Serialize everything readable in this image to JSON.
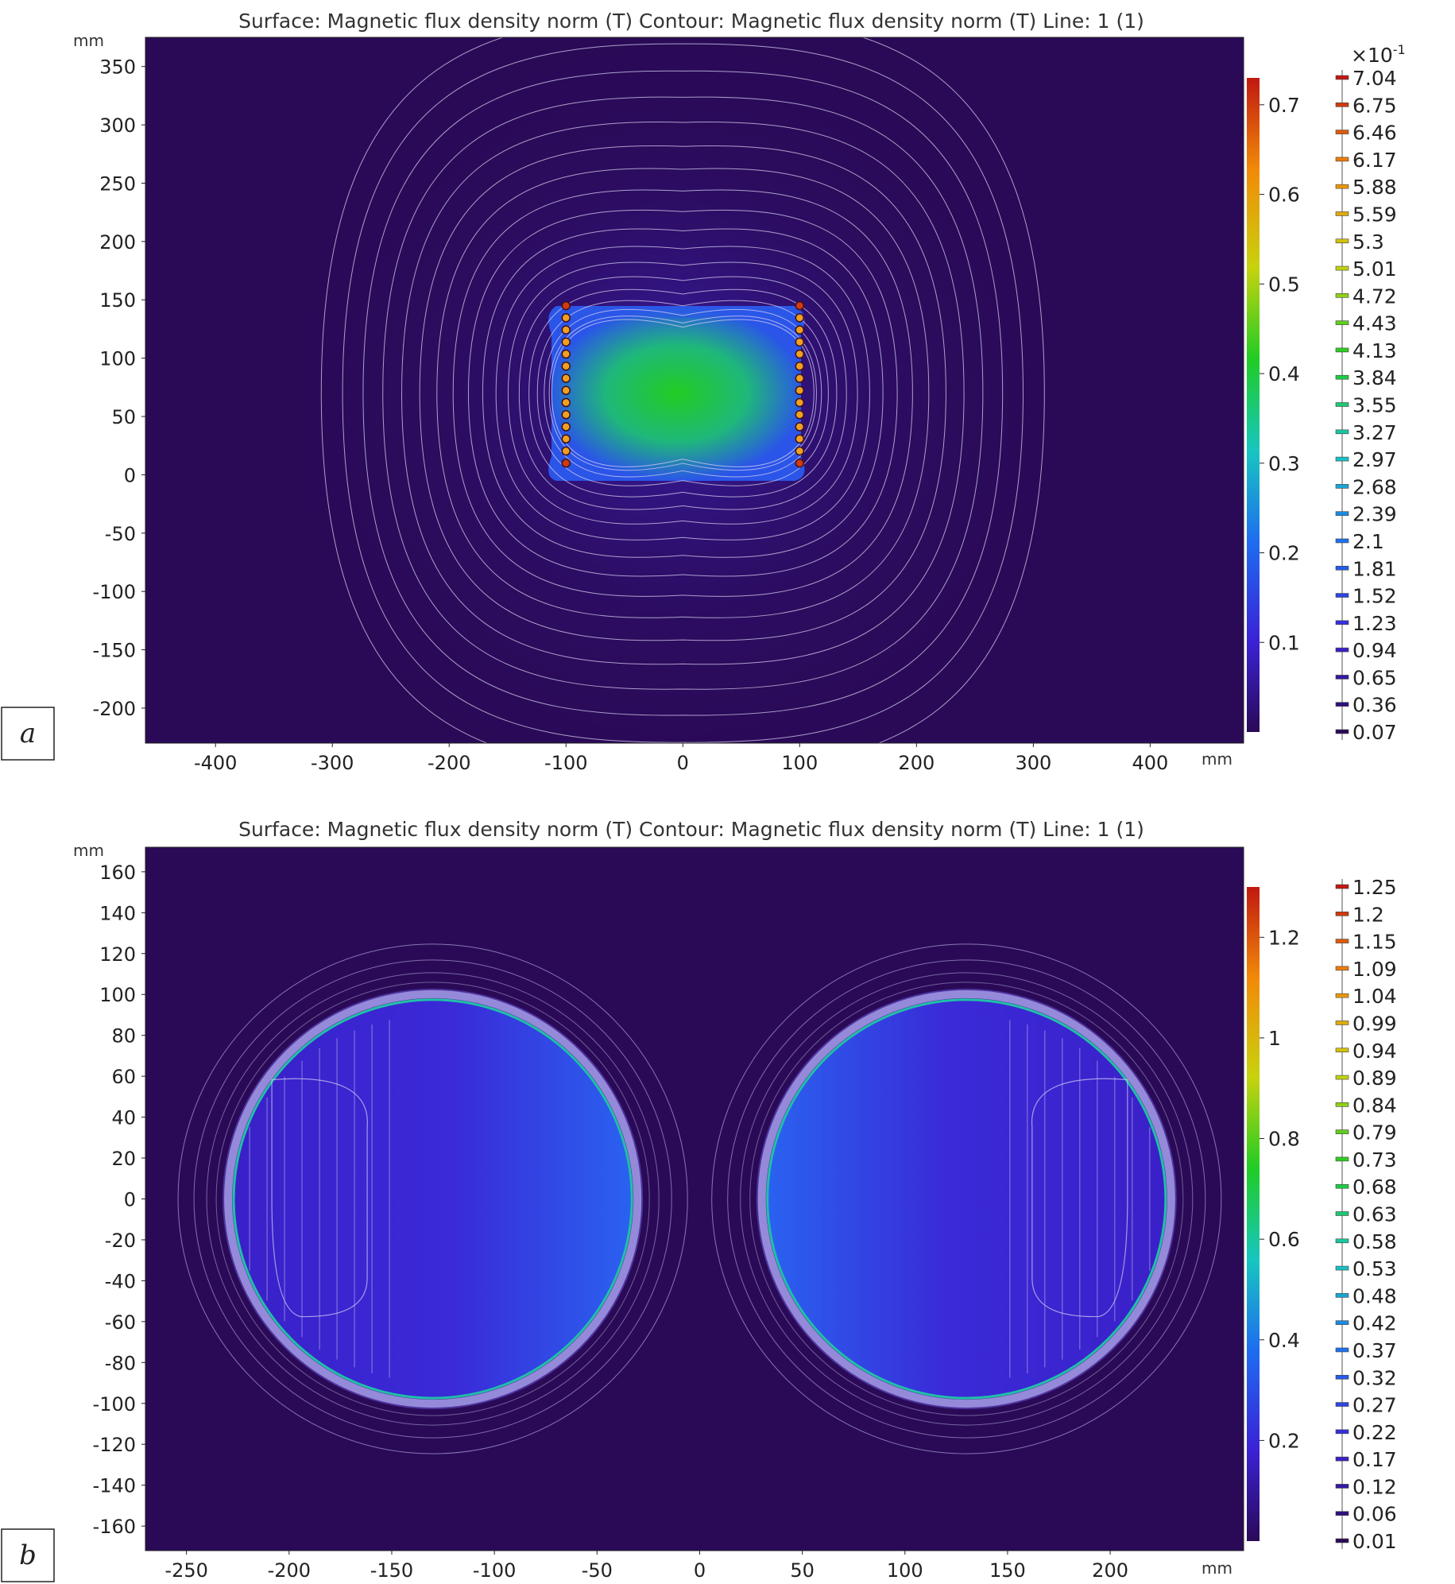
{
  "panels": [
    {
      "label": "a",
      "title": "Surface: Magnetic flux density norm (T)  Contour: Magnetic flux density norm (T)  Line: 1 (1)",
      "x_unit": "mm",
      "y_unit": "mm",
      "surface_colorbar_ticks": [
        "0.7",
        "0.6",
        "0.5",
        "0.4",
        "0.3",
        "0.2",
        "0.1"
      ],
      "contour_scale_multiplier": "×10",
      "contour_scale_exponent": "-1",
      "contour_levels": [
        "7.04",
        "6.75",
        "6.46",
        "6.17",
        "5.88",
        "5.59",
        "5.3",
        "5.01",
        "4.72",
        "4.43",
        "4.13",
        "3.84",
        "3.55",
        "3.27",
        "2.97",
        "2.68",
        "2.39",
        "2.1",
        "1.81",
        "1.52",
        "1.23",
        "0.94",
        "0.65",
        "0.36",
        "0.07"
      ]
    },
    {
      "label": "b",
      "title": "Surface: Magnetic flux density norm (T)  Contour: Magnetic flux density norm (T)  Line: 1 (1)",
      "x_unit": "mm",
      "y_unit": "mm",
      "surface_colorbar_ticks": [
        "1.2",
        "1",
        "0.8",
        "0.6",
        "0.4",
        "0.2"
      ],
      "contour_scale_multiplier": "",
      "contour_scale_exponent": "",
      "contour_levels": [
        "1.25",
        "1.2",
        "1.15",
        "1.09",
        "1.04",
        "0.99",
        "0.94",
        "0.89",
        "0.84",
        "0.79",
        "0.73",
        "0.68",
        "0.63",
        "0.58",
        "0.53",
        "0.48",
        "0.42",
        "0.37",
        "0.32",
        "0.27",
        "0.22",
        "0.17",
        "0.12",
        "0.06",
        "0.01"
      ]
    }
  ],
  "chart_data": [
    {
      "type": "heatmap",
      "title": "Surface: Magnetic flux density norm (T)  Contour: Magnetic flux density norm (T)  Line: 1 (1)",
      "xlabel": "mm",
      "ylabel": "mm",
      "xlim": [
        -460,
        480
      ],
      "ylim": [
        -230,
        375
      ],
      "x_ticks": [
        -400,
        -300,
        -200,
        -100,
        0,
        100,
        200,
        300,
        400
      ],
      "y_ticks": [
        350,
        300,
        250,
        200,
        150,
        100,
        50,
        0,
        -50,
        -100,
        -150,
        -200
      ],
      "colorbar_range": [
        0.0,
        0.73
      ],
      "colorbar_ticks": [
        0.7,
        0.6,
        0.5,
        0.4,
        0.3,
        0.2,
        0.1
      ],
      "colormap": "rainbow",
      "colormap_stops": [
        "#2a0a57",
        "#3b22d6",
        "#1e6cf0",
        "#17c6c0",
        "#20cc24",
        "#c8d20e",
        "#f28a08",
        "#c01810"
      ],
      "contour_levels_x0_1": [
        7.04,
        6.75,
        6.46,
        6.17,
        5.88,
        5.59,
        5.3,
        5.01,
        4.72,
        4.43,
        4.13,
        3.84,
        3.55,
        3.27,
        2.97,
        2.68,
        2.39,
        2.1,
        1.81,
        1.52,
        1.23,
        0.94,
        0.65,
        0.36,
        0.07
      ],
      "coil": {
        "conductor_columns_x": [
          -100,
          100
        ],
        "conductor_y_range": [
          10,
          145
        ],
        "conductors_per_column": 14
      },
      "peak_field_T": 0.73
    },
    {
      "type": "heatmap",
      "title": "Surface: Magnetic flux density norm (T)  Contour: Magnetic flux density norm (T)  Line: 1 (1)",
      "xlabel": "mm",
      "ylabel": "mm",
      "xlim": [
        -270,
        265
      ],
      "ylim": [
        -172,
        172
      ],
      "x_ticks": [
        -250,
        -200,
        -150,
        -100,
        -50,
        0,
        50,
        100,
        150,
        200
      ],
      "y_ticks": [
        160,
        140,
        120,
        100,
        80,
        60,
        40,
        20,
        0,
        -20,
        -40,
        -60,
        -80,
        -100,
        -120,
        -140,
        -160
      ],
      "colorbar_range": [
        0.0,
        1.3
      ],
      "colorbar_ticks": [
        1.2,
        1,
        0.8,
        0.6,
        0.4,
        0.2
      ],
      "colormap": "rainbow",
      "colormap_stops": [
        "#2a0a57",
        "#3b22d6",
        "#1e6cf0",
        "#17c6c0",
        "#20cc24",
        "#c8d20e",
        "#f28a08",
        "#c01810"
      ],
      "contour_levels": [
        1.25,
        1.2,
        1.15,
        1.09,
        1.04,
        0.99,
        0.94,
        0.89,
        0.84,
        0.79,
        0.73,
        0.68,
        0.63,
        0.58,
        0.53,
        0.48,
        0.42,
        0.37,
        0.32,
        0.27,
        0.22,
        0.17,
        0.12,
        0.06,
        0.01
      ],
      "rings": [
        {
          "center": [
            -130,
            0
          ],
          "radius": 97
        },
        {
          "center": [
            130,
            0
          ],
          "radius": 97
        }
      ],
      "peak_field_T": 1.3
    }
  ]
}
